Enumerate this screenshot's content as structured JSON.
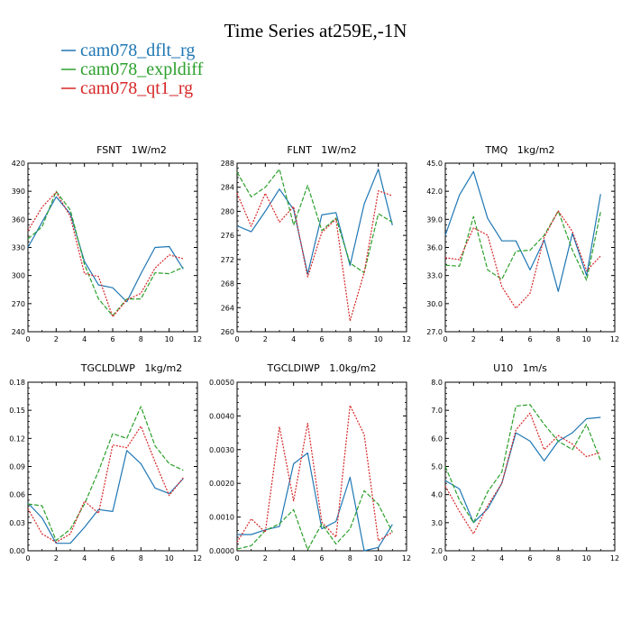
{
  "page_title": "Time Series at259E,-1N",
  "legend": [
    {
      "name": "cam078_dflt_rg",
      "color": "#1f77b4",
      "dash": false
    },
    {
      "name": "cam078_expldiff",
      "color": "#2ca02c",
      "dash": true
    },
    {
      "name": "cam078_qt1_rg",
      "color": "#d62728",
      "dash": true
    }
  ],
  "chart_data": [
    {
      "type": "line",
      "title": "FSNT   1W/m2",
      "x": [
        0,
        1,
        2,
        3,
        4,
        5,
        6,
        7,
        8,
        9,
        10,
        11
      ],
      "xlim": [
        0,
        12
      ],
      "xticks": [
        0,
        2,
        4,
        6,
        8,
        10,
        12
      ],
      "ylim": [
        240,
        420
      ],
      "yticks": [
        "240",
        "270",
        "300",
        "330",
        "360",
        "390",
        "420"
      ],
      "series": [
        {
          "name": "cam078_dflt_rg",
          "values": [
            330,
            357,
            384,
            366,
            315,
            290,
            287,
            272,
            302,
            330,
            331,
            307
          ]
        },
        {
          "name": "cam078_expldiff",
          "values": [
            339,
            352,
            390,
            370,
            312,
            275,
            257,
            275,
            275,
            303,
            302,
            309
          ]
        },
        {
          "name": "cam078_qt1_rg",
          "values": [
            348,
            373,
            389,
            363,
            302,
            299,
            256,
            274,
            281,
            308,
            322,
            318
          ]
        }
      ]
    },
    {
      "type": "line",
      "title": "FLNT   1W/m2",
      "x": [
        0,
        1,
        2,
        3,
        4,
        5,
        6,
        7,
        8,
        9,
        10,
        11
      ],
      "xlim": [
        0,
        12
      ],
      "xticks": [
        0,
        2,
        4,
        6,
        8,
        10,
        12
      ],
      "ylim": [
        260,
        288
      ],
      "yticks": [
        "260",
        "264",
        "268",
        "272",
        "276",
        "280",
        "284",
        "288"
      ],
      "series": [
        {
          "name": "cam078_dflt_rg",
          "values": [
            277.6,
            276.6,
            280.0,
            283.7,
            280.3,
            269.6,
            279.4,
            279.8,
            271.0,
            281.2,
            287.0,
            277.7
          ]
        },
        {
          "name": "cam078_expldiff",
          "values": [
            286.5,
            282.4,
            284.0,
            287.0,
            277.7,
            284.3,
            276.8,
            278.9,
            271.4,
            269.8,
            279.6,
            278.2
          ]
        },
        {
          "name": "cam078_qt1_rg",
          "values": [
            283.0,
            277.5,
            283.0,
            278.2,
            280.8,
            269.1,
            276.5,
            278.7,
            261.8,
            269.8,
            283.4,
            282.6
          ]
        }
      ]
    },
    {
      "type": "line",
      "title": "TMQ   1kg/m2",
      "x": [
        0,
        1,
        2,
        3,
        4,
        5,
        6,
        7,
        8,
        9,
        10,
        11
      ],
      "xlim": [
        0,
        12
      ],
      "xticks": [
        0,
        2,
        4,
        6,
        8,
        10,
        12
      ],
      "ylim": [
        27.0,
        45.0
      ],
      "yticks": [
        "27.0",
        "30.0",
        "33.0",
        "36.0",
        "39.0",
        "42.0",
        "45.0"
      ],
      "series": [
        {
          "name": "cam078_dflt_rg",
          "values": [
            37.3,
            41.6,
            44.1,
            39.1,
            36.7,
            36.7,
            33.6,
            36.8,
            31.3,
            37.5,
            33.0,
            41.7
          ]
        },
        {
          "name": "cam078_expldiff",
          "values": [
            34.1,
            34.0,
            39.3,
            33.6,
            32.6,
            35.6,
            35.7,
            37.3,
            39.9,
            35.7,
            32.5,
            39.8
          ]
        },
        {
          "name": "cam078_qt1_rg",
          "values": [
            34.9,
            34.7,
            38.1,
            37.3,
            31.8,
            29.5,
            31.1,
            37.1,
            39.9,
            37.7,
            33.5,
            35.1
          ]
        }
      ]
    },
    {
      "type": "line",
      "title": "TGCLDLWP   1kg/m2",
      "x": [
        0,
        1,
        2,
        3,
        4,
        5,
        6,
        7,
        8,
        9,
        10,
        11
      ],
      "xlim": [
        0,
        12
      ],
      "xticks": [
        0,
        2,
        4,
        6,
        8,
        10,
        12
      ],
      "ylim": [
        0.0,
        0.18
      ],
      "yticks": [
        "0.00",
        "0.03",
        "0.06",
        "0.09",
        "0.12",
        "0.15",
        "0.18"
      ],
      "series": [
        {
          "name": "cam078_dflt_rg",
          "values": [
            0.051,
            0.035,
            0.008,
            0.008,
            0.025,
            0.044,
            0.042,
            0.107,
            0.093,
            0.067,
            0.061,
            0.077
          ]
        },
        {
          "name": "cam078_expldiff",
          "values": [
            0.05,
            0.048,
            0.011,
            0.023,
            0.05,
            0.085,
            0.125,
            0.12,
            0.154,
            0.112,
            0.093,
            0.086
          ]
        },
        {
          "name": "cam078_qt1_rg",
          "values": [
            0.045,
            0.018,
            0.009,
            0.018,
            0.053,
            0.04,
            0.113,
            0.11,
            0.133,
            0.095,
            0.059,
            0.078
          ]
        }
      ]
    },
    {
      "type": "line",
      "title": "TGCLDIWP   1.0kg/m2",
      "x": [
        0,
        1,
        2,
        3,
        4,
        5,
        6,
        7,
        8,
        9,
        10,
        11
      ],
      "xlim": [
        0,
        12
      ],
      "xticks": [
        0,
        2,
        4,
        6,
        8,
        10,
        12
      ],
      "ylim": [
        0.0,
        0.005
      ],
      "yticks": [
        "0.0000",
        "0.0010",
        "0.0020",
        "0.0030",
        "0.0040",
        "0.0050"
      ],
      "series": [
        {
          "name": "cam078_dflt_rg",
          "values": [
            0.00048,
            0.00048,
            0.00062,
            0.00072,
            0.00258,
            0.0029,
            0.00065,
            0.00087,
            0.00218,
            0.0,
            0.0001,
            0.00078
          ]
        },
        {
          "name": "cam078_expldiff",
          "values": [
            5e-05,
            0.00015,
            0.0006,
            0.0008,
            0.00122,
            3e-05,
            0.0008,
            0.0002,
            0.00065,
            0.00178,
            0.00138,
            0.00055
          ]
        },
        {
          "name": "cam078_qt1_rg",
          "values": [
            0.00025,
            0.00095,
            0.00055,
            0.00368,
            0.00148,
            0.00378,
            0.00085,
            0.0004,
            0.00431,
            0.00345,
            0.0003,
            0.00055
          ]
        }
      ]
    },
    {
      "type": "line",
      "title": "U10   1m/s",
      "x": [
        0,
        1,
        2,
        3,
        4,
        5,
        6,
        7,
        8,
        9,
        10,
        11
      ],
      "xlim": [
        0,
        12
      ],
      "xticks": [
        0,
        2,
        4,
        6,
        8,
        10,
        12
      ],
      "ylim": [
        2.0,
        8.0
      ],
      "yticks": [
        "2.0",
        "3.0",
        "4.0",
        "5.0",
        "6.0",
        "7.0",
        "8.0"
      ],
      "series": [
        {
          "name": "cam078_dflt_rg",
          "values": [
            4.5,
            4.2,
            3.0,
            3.5,
            4.4,
            6.2,
            5.9,
            5.2,
            5.9,
            6.2,
            6.7,
            6.75
          ]
        },
        {
          "name": "cam078_expldiff",
          "values": [
            5.0,
            3.8,
            3.0,
            4.1,
            4.8,
            7.15,
            7.2,
            6.5,
            5.9,
            5.6,
            6.5,
            5.2
          ]
        },
        {
          "name": "cam078_qt1_rg",
          "values": [
            4.3,
            3.4,
            2.6,
            3.6,
            4.4,
            6.3,
            6.9,
            5.6,
            6.1,
            5.8,
            5.35,
            5.5
          ]
        }
      ]
    }
  ]
}
